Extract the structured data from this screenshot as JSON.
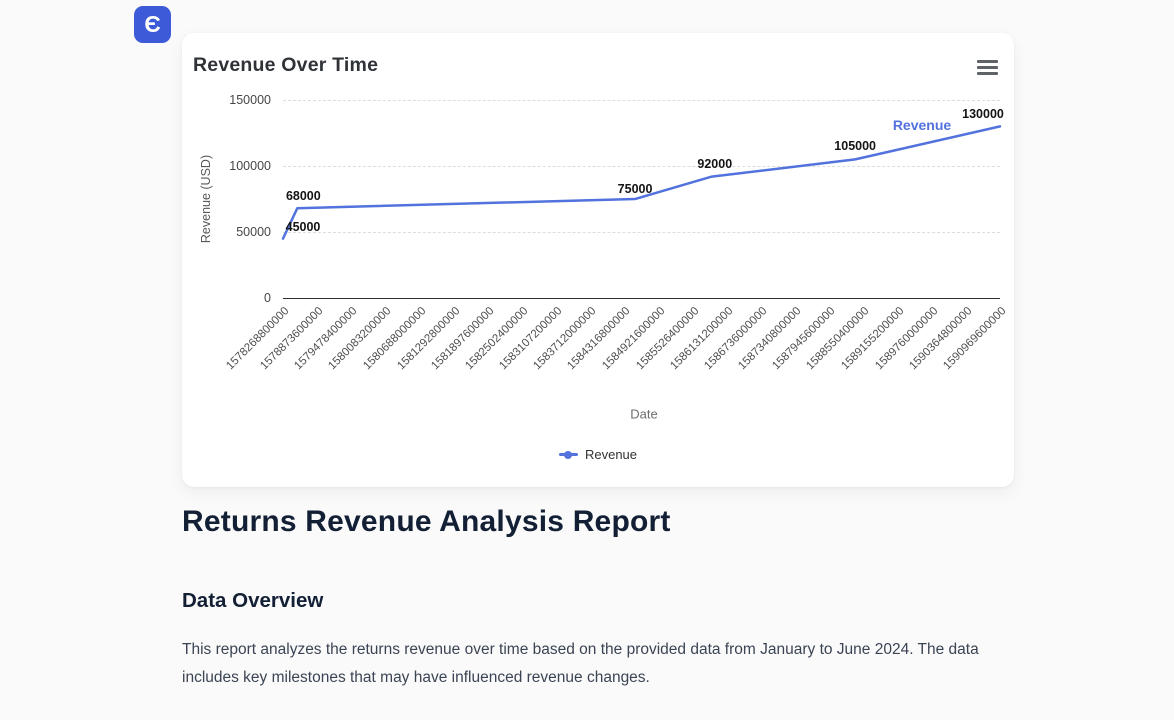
{
  "logo": {
    "glyph": "Є",
    "color": "#3d5ad8"
  },
  "chart_card": {
    "menu_icon": "hamburger-menu"
  },
  "chart_data": {
    "type": "line",
    "title": "Revenue Over Time",
    "xlabel": "Date",
    "ylabel": "Revenue (USD)",
    "ylim": [
      0,
      150000
    ],
    "yticks": [
      0,
      50000,
      100000,
      150000
    ],
    "grid": "horizontal-dashed",
    "legend": {
      "position": "bottom",
      "entries": [
        "Revenue"
      ]
    },
    "xticks": [
      "1578268800000",
      "1578873600000",
      "1579478400000",
      "1580083200000",
      "1580688000000",
      "1581292800000",
      "1581897600000",
      "1582502400000",
      "1583107200000",
      "1583712000000",
      "1584316800000",
      "1584921600000",
      "1585526400000",
      "1586131200000",
      "1586736000000",
      "1587340800000",
      "1587945600000",
      "1588550400000",
      "1589155200000",
      "1589760000000",
      "1590364800000",
      "1590969600000"
    ],
    "series": [
      {
        "name": "Revenue",
        "color": "#5272dd",
        "end_label": "Revenue",
        "points": [
          {
            "x_frac": 0.0,
            "value": 45000,
            "label": "45000"
          },
          {
            "x_frac": 0.02,
            "value": 68000,
            "label": "68000"
          },
          {
            "x_frac": 0.491,
            "value": 75000,
            "label": "75000"
          },
          {
            "x_frac": 0.598,
            "value": 92000,
            "label": "92000"
          },
          {
            "x_frac": 0.798,
            "value": 105000,
            "label": "105000"
          },
          {
            "x_frac": 1.0,
            "value": 130000,
            "label": "130000"
          }
        ]
      }
    ]
  },
  "report": {
    "title": "Returns Revenue Analysis Report",
    "section_heading": "Data Overview",
    "paragraph": "This report analyzes the returns revenue over time based on the provided data from January to June 2024. The data includes key milestones that may have influenced revenue changes."
  }
}
